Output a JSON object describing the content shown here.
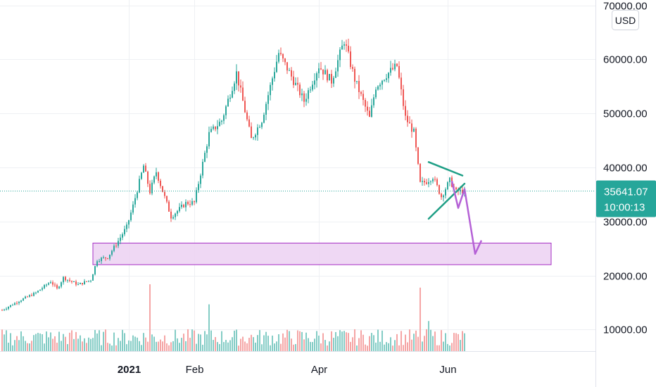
{
  "chart_data": {
    "type": "candlestick",
    "currency_label": "USD",
    "y_scale": "linear",
    "ylim": [
      6000,
      71000
    ],
    "y_ticks": [
      {
        "value": 10000,
        "label": "10000.00"
      },
      {
        "value": 20000,
        "label": "20000.00"
      },
      {
        "value": 30000,
        "label": "30000.00"
      },
      {
        "value": 40000,
        "label": "40000.00"
      },
      {
        "value": 50000,
        "label": "50000.00"
      },
      {
        "value": 60000,
        "label": "60000.00"
      },
      {
        "value": 70000,
        "label": "70000.00"
      }
    ],
    "x_labels": [
      {
        "label": "2021",
        "date": "2021-01-01",
        "bold": true
      },
      {
        "label": "Feb",
        "date": "2021-02-01",
        "bold": false
      },
      {
        "label": "Apr",
        "date": "2021-04-01",
        "bold": false
      },
      {
        "label": "Jun",
        "date": "2021-06-01",
        "bold": false
      }
    ],
    "x_range": [
      "2020-11-01",
      "2021-08-10"
    ],
    "last_price": {
      "value": 35641.07,
      "label": "35641.07",
      "countdown": "10:00:13"
    },
    "colors": {
      "up": "#26a69a",
      "down": "#ef5350",
      "volume_up": "#80cbc4",
      "volume_down": "#f5a3a3",
      "price_line": "#26a69a",
      "trendlines": "#1f9f86",
      "projection": "#b561d6",
      "zone_fill": "#ecd1f2",
      "zone_stroke": "#a62fc4",
      "grid": "#eef0f3"
    },
    "support_zone": {
      "from": 22000,
      "to": 26000,
      "start_date": "2020-12-15",
      "end_date": "2021-07-20"
    },
    "triangle": {
      "upper": [
        {
          "date": "2021-05-23",
          "price": 41000
        },
        {
          "date": "2021-06-08",
          "price": 38500
        }
      ],
      "lower": [
        {
          "date": "2021-05-23",
          "price": 30500
        },
        {
          "date": "2021-06-09",
          "price": 37000
        }
      ]
    },
    "projection_path": [
      {
        "date": "2021-06-03",
        "price": 37500
      },
      {
        "date": "2021-06-06",
        "price": 32500
      },
      {
        "date": "2021-06-09",
        "price": 36000
      },
      {
        "date": "2021-06-14",
        "price": 24000
      },
      {
        "date": "2021-06-17",
        "price": 26500
      }
    ],
    "price_anchors": [
      [
        "2020-11-02",
        13600
      ],
      [
        "2020-11-10",
        15300
      ],
      [
        "2020-11-18",
        16800
      ],
      [
        "2020-11-25",
        18900
      ],
      [
        "2020-11-28",
        17500
      ],
      [
        "2020-12-01",
        19600
      ],
      [
        "2020-12-08",
        18300
      ],
      [
        "2020-12-14",
        19200
      ],
      [
        "2020-12-17",
        22900
      ],
      [
        "2020-12-22",
        23400
      ],
      [
        "2020-12-27",
        26400
      ],
      [
        "2020-12-31",
        29000
      ],
      [
        "2021-01-03",
        32900
      ],
      [
        "2021-01-08",
        40300
      ],
      [
        "2021-01-11",
        35500
      ],
      [
        "2021-01-14",
        39200
      ],
      [
        "2021-01-21",
        30900
      ],
      [
        "2021-01-25",
        32300
      ],
      [
        "2021-01-28",
        33400
      ],
      [
        "2021-02-01",
        33500
      ],
      [
        "2021-02-08",
        46200
      ],
      [
        "2021-02-14",
        48700
      ],
      [
        "2021-02-21",
        57500
      ],
      [
        "2021-02-28",
        45200
      ],
      [
        "2021-03-05",
        48800
      ],
      [
        "2021-03-13",
        61200
      ],
      [
        "2021-03-18",
        57600
      ],
      [
        "2021-03-25",
        52300
      ],
      [
        "2021-04-01",
        58800
      ],
      [
        "2021-04-07",
        56000
      ],
      [
        "2021-04-13",
        63500
      ],
      [
        "2021-04-18",
        56300
      ],
      [
        "2021-04-25",
        49100
      ],
      [
        "2021-04-28",
        55000
      ],
      [
        "2021-05-03",
        57200
      ],
      [
        "2021-05-08",
        58800
      ],
      [
        "2021-05-12",
        49200
      ],
      [
        "2021-05-16",
        46500
      ],
      [
        "2021-05-19",
        37000
      ],
      [
        "2021-05-22",
        37400
      ],
      [
        "2021-05-25",
        38300
      ],
      [
        "2021-05-29",
        34600
      ],
      [
        "2021-06-02",
        37600
      ],
      [
        "2021-06-05",
        35500
      ],
      [
        "2021-06-09",
        35641
      ]
    ],
    "volume_spikes": [
      {
        "date": "2021-01-11",
        "value": 1.0
      },
      {
        "date": "2021-02-08",
        "value": 0.7
      },
      {
        "date": "2021-05-19",
        "value": 0.95
      },
      {
        "date": "2021-05-23",
        "value": 0.45
      }
    ]
  }
}
